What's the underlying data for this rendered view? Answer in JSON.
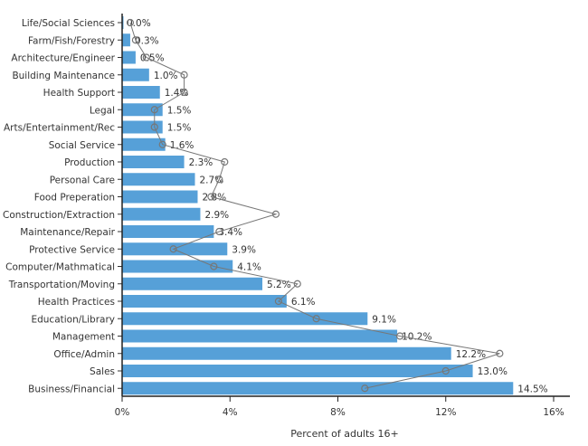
{
  "chart_data": {
    "type": "bar",
    "orientation": "horizontal",
    "xlabel": "Percent of adults 16+",
    "xlim": [
      0,
      16
    ],
    "xticks": [
      "0%",
      "4%",
      "8%",
      "12%",
      "16%"
    ],
    "xtick_values": [
      0,
      4,
      8,
      12,
      16
    ],
    "grid": false,
    "categories": [
      "Life/Social Sciences",
      "Farm/Fish/Forestry",
      "Architecture/Engineer",
      "Building Maintenance",
      "Health Support",
      "Legal",
      "Arts/Entertainment/Rec",
      "Social Service",
      "Production",
      "Personal Care",
      "Food Preperation",
      "Construction/Extraction",
      "Maintenance/Repair",
      "Protective Service",
      "Computer/Mathmatical",
      "Transportation/Moving",
      "Health Practices",
      "Education/Library",
      "Management",
      "Office/Admin",
      "Sales",
      "Business/Financial"
    ],
    "series": [
      {
        "type": "bar",
        "color": "#56a0d8",
        "values": [
          0.0,
          0.3,
          0.5,
          1.0,
          1.4,
          1.5,
          1.5,
          1.6,
          2.3,
          2.7,
          2.8,
          2.9,
          3.4,
          3.9,
          4.1,
          5.2,
          6.1,
          9.1,
          10.2,
          12.2,
          13.0,
          14.5
        ],
        "labels": [
          "0.0%",
          "0.3%",
          "0.5%",
          "1.0%",
          "1.4%",
          "1.5%",
          "1.5%",
          "1.6%",
          "2.3%",
          "2.7%",
          "2.8%",
          "2.9%",
          "3.4%",
          "3.9%",
          "4.1%",
          "5.2%",
          "6.1%",
          "9.1%",
          "10.2%",
          "12.2%",
          "13.0%",
          "14.5%"
        ]
      },
      {
        "type": "line",
        "color": "#777777",
        "marker": "open-circle",
        "values": [
          0.3,
          0.5,
          0.9,
          2.3,
          2.3,
          1.2,
          1.2,
          1.5,
          3.8,
          3.6,
          3.3,
          5.7,
          3.6,
          1.9,
          3.4,
          6.5,
          5.8,
          7.2,
          10.3,
          14.0,
          12.0,
          9.0
        ]
      }
    ]
  }
}
